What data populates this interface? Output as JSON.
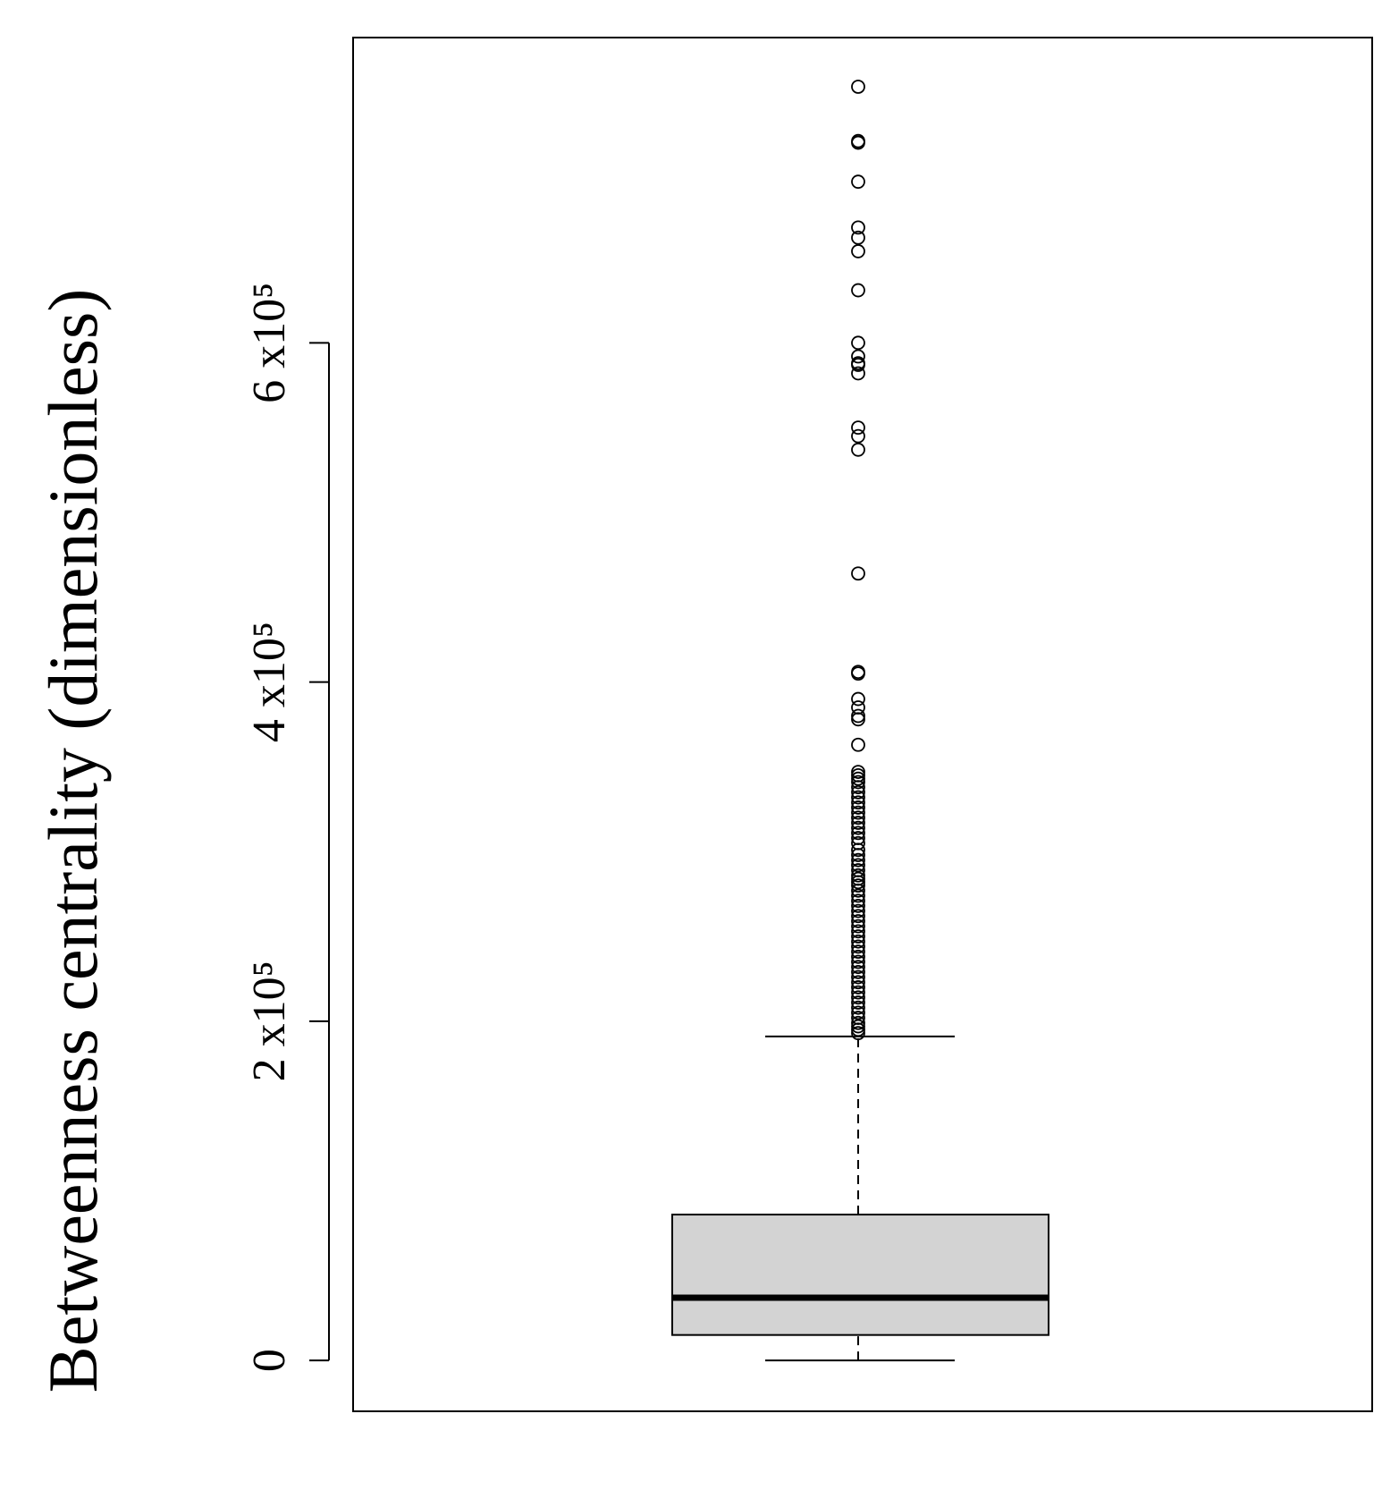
{
  "chart_data": {
    "type": "boxplot",
    "title": "",
    "xlabel": "",
    "ylabel": "Betweenness centrality (dimensionless)",
    "ylim": [
      -30000,
      780000
    ],
    "y_ticks": [
      {
        "value": 0,
        "label": "0"
      },
      {
        "value": 200000,
        "label": "2 x10⁵"
      },
      {
        "value": 400000,
        "label": "4 x10⁵"
      },
      {
        "value": 600000,
        "label": "6 x10⁵"
      }
    ],
    "grid": false,
    "legend": "none",
    "box": {
      "min": 0,
      "q1": 15000,
      "median": 37000,
      "q3": 86000,
      "max": 191000,
      "fill_color": "#d3d3d3",
      "outliers": [
        751000,
        719000,
        718000,
        695000,
        668000,
        662000,
        654000,
        631000,
        600000,
        592000,
        588000,
        587000,
        582000,
        550000,
        545000,
        537000,
        464000,
        406000,
        405000,
        390000,
        385000,
        380000,
        378000,
        363000,
        347000,
        345000,
        343000,
        341000,
        338000,
        335000,
        332000,
        329000,
        326000,
        323000,
        320000,
        317000,
        314000,
        311000,
        308000,
        305000,
        301000,
        298000,
        295000,
        292000,
        289000,
        286000,
        284000,
        282000,
        280000,
        277000,
        274000,
        271000,
        268000,
        265000,
        262000,
        259000,
        256000,
        253000,
        250000,
        247000,
        244000,
        241000,
        238000,
        235000,
        232000,
        229000,
        226000,
        223000,
        220000,
        217000,
        214000,
        211000,
        208000,
        205000,
        202000,
        199000,
        197000,
        195000,
        193000
      ]
    }
  }
}
